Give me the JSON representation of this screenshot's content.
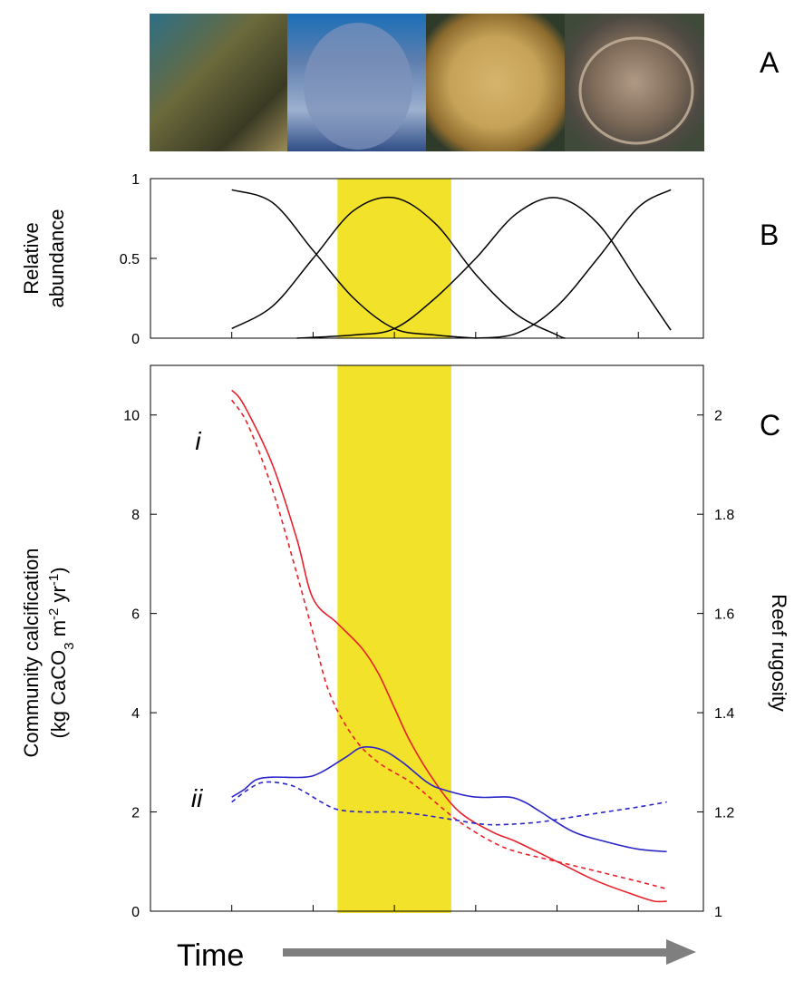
{
  "panels": {
    "a": "A",
    "b": "B",
    "c": "C"
  },
  "photos": [
    {
      "name": "branching-coral-photo",
      "colors": [
        "#2c6f86",
        "#6b6a3c",
        "#3a3a24",
        "#9b8a57"
      ]
    },
    {
      "name": "massive-mounding-coral-photo",
      "colors": [
        "#1b6fb8",
        "#5f7fae",
        "#9db0cf",
        "#2f4e87"
      ]
    },
    {
      "name": "brain-coral-photo",
      "colors": [
        "#2e3a2a",
        "#c5a257",
        "#d7b46c",
        "#8d6b2e"
      ]
    },
    {
      "name": "plate-coral-photo",
      "colors": [
        "#4e4a43",
        "#b09a86",
        "#7e6a58",
        "#3f4a3a"
      ]
    }
  ],
  "time_label": "Time",
  "colors": {
    "red": "#e8202a",
    "blue": "#2a25c8",
    "highlight": "#f2e22a",
    "arrow": "#7f7f7f"
  },
  "chart_data": [
    {
      "id": "B",
      "type": "line",
      "ylabel_lines": [
        "Relative",
        "abundance"
      ],
      "ylim": [
        0,
        1
      ],
      "yticks": [
        0,
        0.5,
        1
      ],
      "ytick_labels": [
        "0",
        "0.5",
        "1"
      ],
      "xlim": [
        0,
        6.8
      ],
      "xticks": [
        1,
        2,
        3,
        4,
        5,
        6
      ],
      "highlight_x": [
        2.3,
        3.7
      ],
      "series": [
        {
          "values": [
            [
              1,
              0.93
            ],
            [
              1.5,
              0.85
            ],
            [
              2,
              0.55
            ],
            [
              2.5,
              0.25
            ],
            [
              3,
              0.06
            ],
            [
              3.5,
              0.02
            ],
            [
              4,
              0.0
            ]
          ]
        },
        {
          "values": [
            [
              1,
              0.06
            ],
            [
              1.5,
              0.2
            ],
            [
              2,
              0.5
            ],
            [
              2.5,
              0.8
            ],
            [
              3,
              0.88
            ],
            [
              3.5,
              0.72
            ],
            [
              4,
              0.4
            ],
            [
              4.5,
              0.15
            ],
            [
              5,
              0.02
            ],
            [
              5.1,
              0.0
            ]
          ]
        },
        {
          "values": [
            [
              1.8,
              0.0
            ],
            [
              2.5,
              0.02
            ],
            [
              3,
              0.06
            ],
            [
              3.5,
              0.25
            ],
            [
              4,
              0.5
            ],
            [
              4.5,
              0.78
            ],
            [
              5,
              0.88
            ],
            [
              5.5,
              0.72
            ],
            [
              6,
              0.35
            ],
            [
              6.4,
              0.05
            ]
          ]
        },
        {
          "values": [
            [
              4,
              0.0
            ],
            [
              4.5,
              0.03
            ],
            [
              5,
              0.2
            ],
            [
              5.5,
              0.5
            ],
            [
              6,
              0.82
            ],
            [
              6.4,
              0.93
            ]
          ]
        }
      ]
    },
    {
      "id": "C",
      "type": "line",
      "ylabel_lines": [
        "Community calcification",
        "(kg CaCO3 m-2 yr-1)"
      ],
      "y2label": "Reef rugosity",
      "ylim": [
        0,
        11
      ],
      "yticks": [
        0,
        2,
        4,
        6,
        8,
        10
      ],
      "ytick_labels": [
        "0",
        "2",
        "4",
        "6",
        "8",
        "10"
      ],
      "y2lim": [
        1,
        2.1
      ],
      "y2ticks": [
        1,
        1.2,
        1.4,
        1.6,
        1.8,
        2
      ],
      "y2tick_labels": [
        "1",
        "1.2",
        "1.4",
        "1.6",
        "1.8",
        "2"
      ],
      "xlim": [
        0,
        6.8
      ],
      "xticks": [
        1,
        2,
        3,
        4,
        5,
        6
      ],
      "highlight_x": [
        2.3,
        3.7
      ],
      "annotations": [
        {
          "text": "i",
          "x": 0.55,
          "y": 9.3
        },
        {
          "text": "ii",
          "x": 0.5,
          "y": 2.1
        }
      ],
      "series": [
        {
          "color": "red",
          "dash": false,
          "values": [
            [
              1,
              10.5
            ],
            [
              1.15,
              10.2
            ],
            [
              1.5,
              9.0
            ],
            [
              1.8,
              7.5
            ],
            [
              2.0,
              6.3
            ],
            [
              2.3,
              5.8
            ],
            [
              2.6,
              5.3
            ],
            [
              2.8,
              4.8
            ],
            [
              3.0,
              4.1
            ],
            [
              3.2,
              3.4
            ],
            [
              3.5,
              2.6
            ],
            [
              3.8,
              2.0
            ],
            [
              4.2,
              1.6
            ],
            [
              4.5,
              1.4
            ],
            [
              5.0,
              1.0
            ],
            [
              5.5,
              0.6
            ],
            [
              6.0,
              0.3
            ],
            [
              6.2,
              0.2
            ],
            [
              6.35,
              0.2
            ]
          ]
        },
        {
          "color": "red",
          "dash": true,
          "values": [
            [
              1,
              10.3
            ],
            [
              1.2,
              9.8
            ],
            [
              1.5,
              8.5
            ],
            [
              1.8,
              6.8
            ],
            [
              2.0,
              5.6
            ],
            [
              2.2,
              4.4
            ],
            [
              2.5,
              3.5
            ],
            [
              2.8,
              3.0
            ],
            [
              3.2,
              2.6
            ],
            [
              3.5,
              2.2
            ],
            [
              3.8,
              1.8
            ],
            [
              4.2,
              1.4
            ],
            [
              4.5,
              1.2
            ],
            [
              5.0,
              1.0
            ],
            [
              5.5,
              0.8
            ],
            [
              6.0,
              0.6
            ],
            [
              6.35,
              0.45
            ]
          ]
        },
        {
          "color": "blue",
          "dash": false,
          "values": [
            [
              1,
              2.3
            ],
            [
              1.15,
              2.45
            ],
            [
              1.3,
              2.65
            ],
            [
              1.5,
              2.7
            ],
            [
              1.9,
              2.7
            ],
            [
              2.1,
              2.8
            ],
            [
              2.4,
              3.1
            ],
            [
              2.6,
              3.3
            ],
            [
              2.85,
              3.25
            ],
            [
              3.1,
              3.0
            ],
            [
              3.4,
              2.6
            ],
            [
              3.6,
              2.45
            ],
            [
              4.0,
              2.3
            ],
            [
              4.4,
              2.3
            ],
            [
              4.6,
              2.2
            ],
            [
              4.8,
              2.0
            ],
            [
              5.2,
              1.6
            ],
            [
              5.6,
              1.4
            ],
            [
              6.0,
              1.25
            ],
            [
              6.35,
              1.2
            ]
          ]
        },
        {
          "color": "blue",
          "dash": true,
          "values": [
            [
              1,
              2.2
            ],
            [
              1.2,
              2.45
            ],
            [
              1.4,
              2.6
            ],
            [
              1.7,
              2.55
            ],
            [
              1.9,
              2.4
            ],
            [
              2.1,
              2.2
            ],
            [
              2.3,
              2.05
            ],
            [
              2.6,
              2.0
            ],
            [
              3.0,
              2.0
            ],
            [
              3.3,
              1.95
            ],
            [
              3.7,
              1.85
            ],
            [
              4.1,
              1.75
            ],
            [
              4.4,
              1.75
            ],
            [
              4.8,
              1.8
            ],
            [
              5.2,
              1.9
            ],
            [
              5.6,
              2.0
            ],
            [
              6.0,
              2.1
            ],
            [
              6.35,
              2.2
            ]
          ]
        }
      ]
    }
  ]
}
